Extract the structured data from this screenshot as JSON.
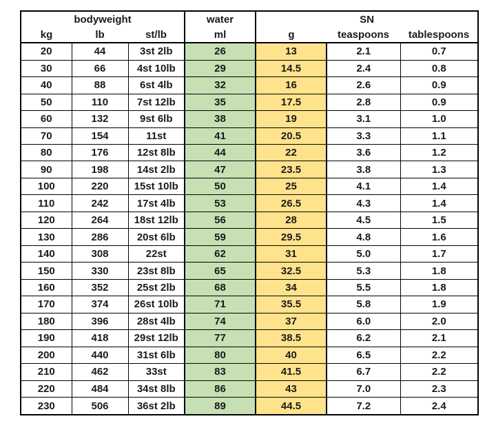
{
  "colors": {
    "water_fill": "#c6e0b4",
    "g_fill": "#ffe38c",
    "border": "#000000",
    "text": "#1a1a1a",
    "background": "#ffffff"
  },
  "chart_data": {
    "type": "table",
    "title": "",
    "column_groups": [
      {
        "label": "bodyweight",
        "span": 3
      },
      {
        "label": "water",
        "span": 1
      },
      {
        "label": "SN",
        "span": 3
      }
    ],
    "columns": [
      "kg",
      "lb",
      "st/lb",
      "ml",
      "g",
      "teaspoons",
      "tablespoons"
    ],
    "rows": [
      [
        "20",
        "44",
        "3st 2lb",
        "26",
        "13",
        "2.1",
        "0.7"
      ],
      [
        "30",
        "66",
        "4st 10lb",
        "29",
        "14.5",
        "2.4",
        "0.8"
      ],
      [
        "40",
        "88",
        "6st 4lb",
        "32",
        "16",
        "2.6",
        "0.9"
      ],
      [
        "50",
        "110",
        "7st 12lb",
        "35",
        "17.5",
        "2.8",
        "0.9"
      ],
      [
        "60",
        "132",
        "9st 6lb",
        "38",
        "19",
        "3.1",
        "1.0"
      ],
      [
        "70",
        "154",
        "11st",
        "41",
        "20.5",
        "3.3",
        "1.1"
      ],
      [
        "80",
        "176",
        "12st 8lb",
        "44",
        "22",
        "3.6",
        "1.2"
      ],
      [
        "90",
        "198",
        "14st 2lb",
        "47",
        "23.5",
        "3.8",
        "1.3"
      ],
      [
        "100",
        "220",
        "15st 10lb",
        "50",
        "25",
        "4.1",
        "1.4"
      ],
      [
        "110",
        "242",
        "17st 4lb",
        "53",
        "26.5",
        "4.3",
        "1.4"
      ],
      [
        "120",
        "264",
        "18st 12lb",
        "56",
        "28",
        "4.5",
        "1.5"
      ],
      [
        "130",
        "286",
        "20st 6lb",
        "59",
        "29.5",
        "4.8",
        "1.6"
      ],
      [
        "140",
        "308",
        "22st",
        "62",
        "31",
        "5.0",
        "1.7"
      ],
      [
        "150",
        "330",
        "23st 8lb",
        "65",
        "32.5",
        "5.3",
        "1.8"
      ],
      [
        "160",
        "352",
        "25st 2lb",
        "68",
        "34",
        "5.5",
        "1.8"
      ],
      [
        "170",
        "374",
        "26st 10lb",
        "71",
        "35.5",
        "5.8",
        "1.9"
      ],
      [
        "180",
        "396",
        "28st 4lb",
        "74",
        "37",
        "6.0",
        "2.0"
      ],
      [
        "190",
        "418",
        "29st 12lb",
        "77",
        "38.5",
        "6.2",
        "2.1"
      ],
      [
        "200",
        "440",
        "31st 6lb",
        "80",
        "40",
        "6.5",
        "2.2"
      ],
      [
        "210",
        "462",
        "33st",
        "83",
        "41.5",
        "6.7",
        "2.2"
      ],
      [
        "220",
        "484",
        "34st 8lb",
        "86",
        "43",
        "7.0",
        "2.3"
      ],
      [
        "230",
        "506",
        "36st 2lb",
        "89",
        "44.5",
        "7.2",
        "2.4"
      ]
    ]
  }
}
